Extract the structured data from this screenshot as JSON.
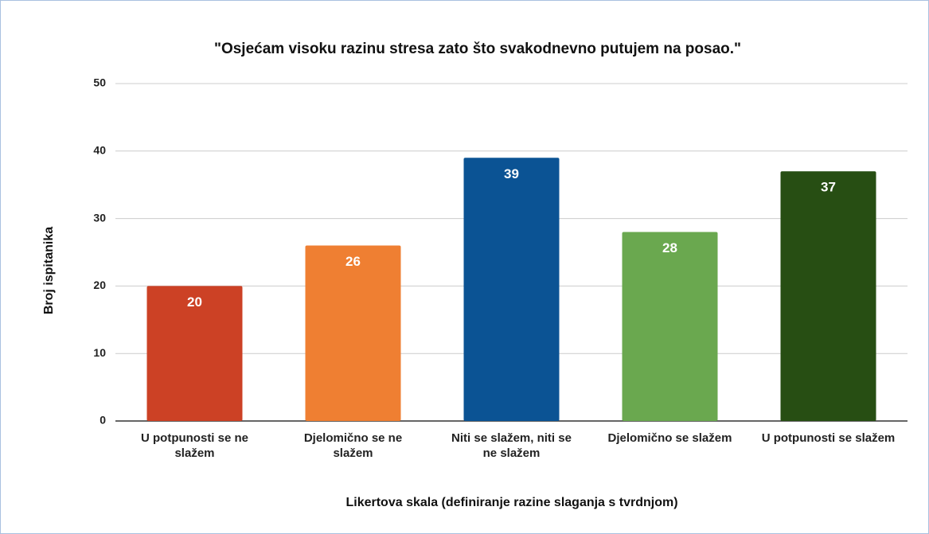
{
  "chart_data": {
    "type": "bar",
    "title": "\"Osjećam visoku razinu stresa zato što svakodnevno putujem na posao.\"",
    "x_label": "Likertova skala (definiranje razine slaganja s tvrdnjom)",
    "y_label": "Broj ispitanika",
    "categories": [
      "U potpunosti se ne slažem",
      "Djelomično se ne slažem",
      "Niti se slažem, niti se ne slažem",
      "Djelomično se slažem",
      "U potpunosti se slažem"
    ],
    "values": [
      20,
      26,
      39,
      28,
      37
    ],
    "colors": [
      "#cc4125",
      "#ef7f32",
      "#0b5394",
      "#6aa84f",
      "#274e13"
    ],
    "ylim": [
      0,
      50
    ],
    "yticks": [
      0,
      10,
      20,
      30,
      40,
      50
    ],
    "grid": true
  }
}
